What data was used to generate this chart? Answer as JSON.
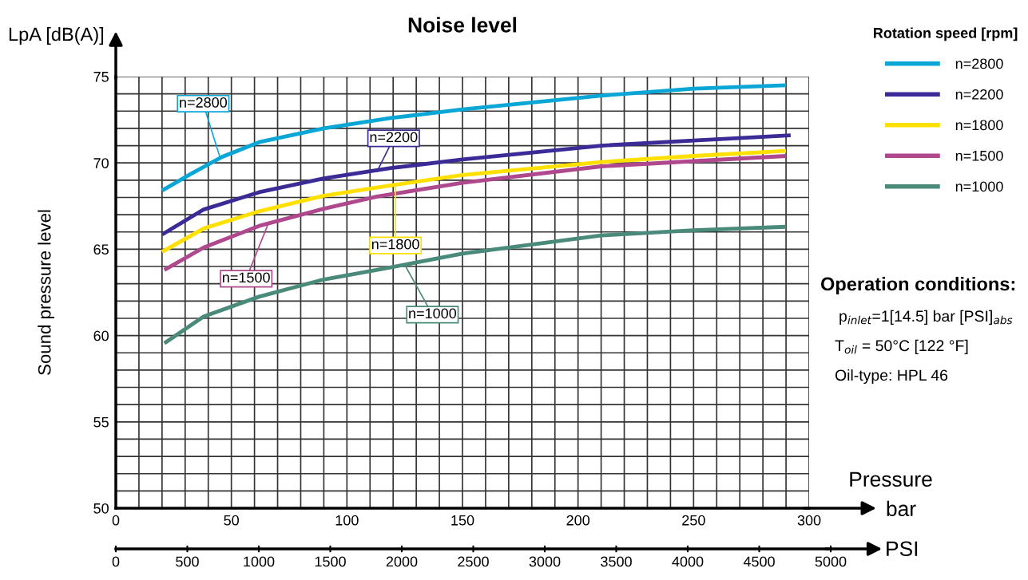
{
  "chart_data": {
    "type": "line",
    "title": "Noise level",
    "xlabel": "Pressure\nbar",
    "x2label": "PSI",
    "ylabel": "Sound pressure level",
    "legend_title": "Rotation speed [rpm]",
    "x": [
      20,
      33,
      46,
      62,
      90,
      119,
      150,
      210,
      250,
      290
    ],
    "series": [
      {
        "name": "n=2800",
        "color": "#0aa6d6",
        "values": [
          68.4,
          69.4,
          70.35,
          71.2,
          72.0,
          72.6,
          73.1,
          73.9,
          74.3,
          74.5
        ]
      },
      {
        "name": "n=2200",
        "color": "#3a2b96",
        "x": [
          20,
          38,
          62,
          90,
          119,
          150,
          210,
          250,
          292
        ],
        "values": [
          65.85,
          67.3,
          68.3,
          69.1,
          69.7,
          70.2,
          71.0,
          71.3,
          71.6
        ]
      },
      {
        "name": "n=1800",
        "color": "#ffe000",
        "x": [
          20,
          38,
          62,
          90,
          119,
          150,
          210,
          250,
          290
        ],
        "values": [
          64.85,
          66.2,
          67.2,
          68.1,
          68.7,
          69.3,
          70.05,
          70.4,
          70.7
        ]
      },
      {
        "name": "n=1500",
        "color": "#b0488e",
        "x": [
          21,
          38,
          62,
          90,
          113,
          150,
          210,
          250,
          290
        ],
        "values": [
          63.8,
          65.1,
          66.35,
          67.35,
          68.05,
          68.85,
          69.8,
          70.1,
          70.4
        ]
      },
      {
        "name": "n=1000",
        "color": "#4a8a7a",
        "x": [
          21,
          38,
          62,
          90,
          119,
          150,
          210,
          250,
          290
        ],
        "values": [
          59.55,
          61.1,
          62.25,
          63.25,
          63.95,
          64.75,
          65.8,
          66.1,
          66.3
        ]
      }
    ],
    "xlim": [
      0,
      300
    ],
    "ylim": [
      50,
      75
    ],
    "xticks": [
      0,
      {
        "value": 10,
        "label": null
      },
      {
        "value": 20,
        "label": null
      },
      {
        "value": 30,
        "label": null
      },
      {
        "value": 40,
        "label": null
      },
      50,
      {
        "value": 60,
        "label": null
      },
      {
        "value": 70,
        "label": null
      },
      {
        "value": 80,
        "label": null
      },
      {
        "value": 90,
        "label": null
      },
      100,
      {
        "value": 110,
        "label": null
      },
      {
        "value": 120,
        "label": null
      },
      {
        "value": 130,
        "label": null
      },
      {
        "value": 140,
        "label": null
      },
      150,
      {
        "value": 160,
        "label": null
      },
      {
        "value": 170,
        "label": null
      },
      {
        "value": 180,
        "label": null
      },
      {
        "value": 190,
        "label": null
      },
      200,
      {
        "value": 210,
        "label": null
      },
      {
        "value": 220,
        "label": null
      },
      {
        "value": 230,
        "label": null
      },
      {
        "value": 240,
        "label": null
      },
      250,
      {
        "value": 260,
        "label": null
      },
      {
        "value": 270,
        "label": null
      },
      {
        "value": 280,
        "label": null
      },
      {
        "value": 290,
        "label": null
      },
      300
    ],
    "yticks": [
      50,
      {
        "value": 51,
        "label": null
      },
      {
        "value": 52,
        "label": null
      },
      {
        "value": 53,
        "label": null
      },
      {
        "value": 54,
        "label": null
      },
      55,
      {
        "value": 56,
        "label": null
      },
      {
        "value": 57,
        "label": null
      },
      {
        "value": 58,
        "label": null
      },
      {
        "value": 59,
        "label": null
      },
      60,
      {
        "value": 61,
        "label": null
      },
      {
        "value": 62,
        "label": null
      },
      {
        "value": 63,
        "label": null
      },
      {
        "value": 64,
        "label": null
      },
      65,
      {
        "value": 66,
        "label": null
      },
      {
        "value": 67,
        "label": null
      },
      {
        "value": 68,
        "label": null
      },
      {
        "value": 69,
        "label": null
      },
      70,
      {
        "value": 71,
        "label": null
      },
      {
        "value": 72,
        "label": null
      },
      {
        "value": 73,
        "label": null
      },
      {
        "value": 74,
        "label": null
      },
      75
    ],
    "x2lim": [
      0,
      5000
    ],
    "x2ticks": [
      0,
      500,
      1000,
      1500,
      2000,
      2500,
      3000,
      3500,
      4000,
      4500,
      5000
    ],
    "grid": true,
    "legend": "top right",
    "line_style": "solid",
    "marker": "none",
    "annotations": [
      {
        "text": "n=2800",
        "x": 45,
        "y": 70.35
      },
      {
        "text": "n=2200",
        "x": 113,
        "y": 69.5
      },
      {
        "text": "n=1800",
        "x": 121,
        "y": 68.75
      },
      {
        "text": "n=1500",
        "x": 66,
        "y": 66.5
      },
      {
        "text": "n=1000",
        "x": 125,
        "y": 64.1
      },
      "LpA [dB(A)]",
      "Operation conditions:",
      "p$_{inlet}$=1[14.5] bar [PSI]$_{abs}$",
      "T$_{oil}$ = 50°C [122 °F]",
      "Oil-type: HPL 46"
    ]
  }
}
